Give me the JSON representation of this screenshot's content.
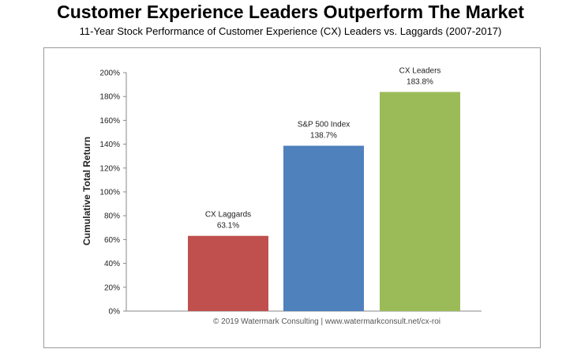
{
  "header": {
    "title": "Customer Experience Leaders Outperform The Market",
    "subtitle": "11-Year Stock Performance of Customer Experience (CX) Leaders vs. Laggards (2007-2017)"
  },
  "chart_data": {
    "type": "bar",
    "categories": [
      "CX Laggards",
      "S&P 500 Index",
      "CX Leaders"
    ],
    "values": [
      63.1,
      138.7,
      183.8
    ],
    "value_labels": [
      "63.1%",
      "138.7%",
      "183.8%"
    ],
    "colors": [
      "#c0504d",
      "#4f81bd",
      "#9bbb59"
    ],
    "ylabel": "Cumulative Total Return",
    "ylim": [
      0,
      200
    ],
    "yticks": [
      0,
      20,
      40,
      60,
      80,
      100,
      120,
      140,
      160,
      180,
      200
    ],
    "ytick_labels": [
      "0%",
      "20%",
      "40%",
      "60%",
      "80%",
      "100%",
      "120%",
      "140%",
      "160%",
      "180%",
      "200%"
    ],
    "grid": false,
    "legend": "none",
    "source_note": "© 2019 Watermark Consulting | www.watermarkconsult.net/cx-roi"
  }
}
